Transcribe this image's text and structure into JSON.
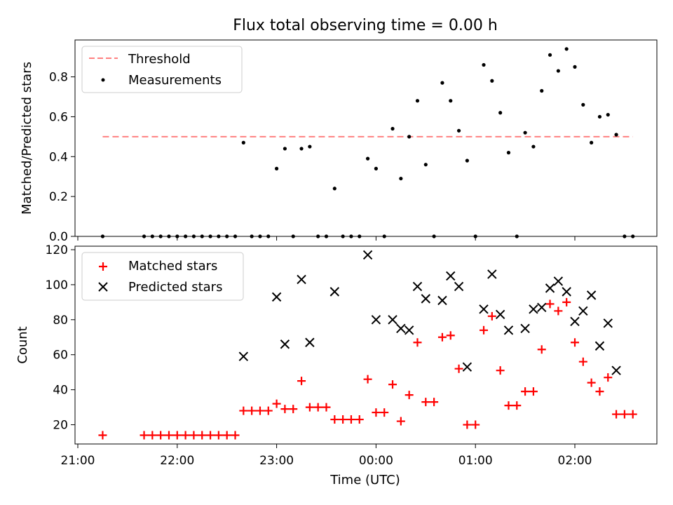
{
  "figure": {
    "title": "Flux total observing time = 0.00 h",
    "xlabel": "Time (UTC)"
  },
  "chart_data": [
    {
      "type": "scatter",
      "ylabel": "Matched/Predicted stars",
      "ylim": [
        0,
        0.985
      ],
      "yticks": [
        "0.0",
        "0.2",
        "0.4",
        "0.6",
        "0.8"
      ],
      "legend_position": "top-left",
      "threshold": {
        "name": "Threshold",
        "value": 0.5,
        "x_range": [
          "21:15",
          "02:35"
        ],
        "color": "#ff8080",
        "style": "dashed"
      },
      "series": [
        {
          "name": "Measurements",
          "color": "#000000",
          "marker": "dot",
          "points": [
            [
              "21:15",
              0.0
            ],
            [
              "21:40",
              0.0
            ],
            [
              "21:45",
              0.0
            ],
            [
              "21:50",
              0.0
            ],
            [
              "21:55",
              0.0
            ],
            [
              "22:00",
              0.0
            ],
            [
              "22:05",
              0.0
            ],
            [
              "22:10",
              0.0
            ],
            [
              "22:15",
              0.0
            ],
            [
              "22:20",
              0.0
            ],
            [
              "22:25",
              0.0
            ],
            [
              "22:30",
              0.0
            ],
            [
              "22:35",
              0.0
            ],
            [
              "22:40",
              0.47
            ],
            [
              "22:45",
              0.0
            ],
            [
              "22:50",
              0.0
            ],
            [
              "22:55",
              0.0
            ],
            [
              "23:00",
              0.34
            ],
            [
              "23:05",
              0.44
            ],
            [
              "23:10",
              0.0
            ],
            [
              "23:15",
              0.44
            ],
            [
              "23:20",
              0.45
            ],
            [
              "23:25",
              0.0
            ],
            [
              "23:30",
              0.0
            ],
            [
              "23:35",
              0.24
            ],
            [
              "23:40",
              0.0
            ],
            [
              "23:45",
              0.0
            ],
            [
              "23:50",
              0.0
            ],
            [
              "23:55",
              0.39
            ],
            [
              "00:00",
              0.34
            ],
            [
              "00:05",
              0.0
            ],
            [
              "00:10",
              0.54
            ],
            [
              "00:15",
              0.29
            ],
            [
              "00:20",
              0.5
            ],
            [
              "00:25",
              0.68
            ],
            [
              "00:30",
              0.36
            ],
            [
              "00:35",
              0.0
            ],
            [
              "00:40",
              0.77
            ],
            [
              "00:45",
              0.68
            ],
            [
              "00:50",
              0.53
            ],
            [
              "00:55",
              0.38
            ],
            [
              "01:00",
              0.0
            ],
            [
              "01:05",
              0.86
            ],
            [
              "01:10",
              0.78
            ],
            [
              "01:15",
              0.62
            ],
            [
              "01:20",
              0.42
            ],
            [
              "01:25",
              0.0
            ],
            [
              "01:30",
              0.52
            ],
            [
              "01:35",
              0.45
            ],
            [
              "01:40",
              0.73
            ],
            [
              "01:45",
              0.91
            ],
            [
              "01:50",
              0.83
            ],
            [
              "01:55",
              0.94
            ],
            [
              "02:00",
              0.85
            ],
            [
              "02:05",
              0.66
            ],
            [
              "02:10",
              0.47
            ],
            [
              "02:15",
              0.6
            ],
            [
              "02:20",
              0.61
            ],
            [
              "02:25",
              0.51
            ],
            [
              "02:30",
              0.0
            ],
            [
              "02:35",
              0.0
            ]
          ]
        }
      ]
    },
    {
      "type": "scatter",
      "ylabel": "Count",
      "ylim": [
        9,
        122
      ],
      "yticks": [
        "20",
        "40",
        "60",
        "80",
        "100",
        "120"
      ],
      "xticks": [
        "21:00",
        "22:00",
        "23:00",
        "00:00",
        "01:00",
        "02:00"
      ],
      "legend_position": "top-left",
      "series": [
        {
          "name": "Matched stars",
          "color": "#ff0000",
          "marker": "plus",
          "points": [
            [
              "21:15",
              14
            ],
            [
              "21:40",
              14
            ],
            [
              "21:45",
              14
            ],
            [
              "21:50",
              14
            ],
            [
              "21:55",
              14
            ],
            [
              "22:00",
              14
            ],
            [
              "22:05",
              14
            ],
            [
              "22:10",
              14
            ],
            [
              "22:15",
              14
            ],
            [
              "22:20",
              14
            ],
            [
              "22:25",
              14
            ],
            [
              "22:30",
              14
            ],
            [
              "22:35",
              14
            ],
            [
              "22:40",
              28
            ],
            [
              "22:45",
              28
            ],
            [
              "22:50",
              28
            ],
            [
              "22:55",
              28
            ],
            [
              "23:00",
              32
            ],
            [
              "23:05",
              29
            ],
            [
              "23:10",
              29
            ],
            [
              "23:15",
              45
            ],
            [
              "23:20",
              30
            ],
            [
              "23:25",
              30
            ],
            [
              "23:30",
              30
            ],
            [
              "23:35",
              23
            ],
            [
              "23:40",
              23
            ],
            [
              "23:45",
              23
            ],
            [
              "23:50",
              23
            ],
            [
              "23:55",
              46
            ],
            [
              "00:00",
              27
            ],
            [
              "00:05",
              27
            ],
            [
              "00:10",
              43
            ],
            [
              "00:15",
              22
            ],
            [
              "00:20",
              37
            ],
            [
              "00:25",
              67
            ],
            [
              "00:30",
              33
            ],
            [
              "00:35",
              33
            ],
            [
              "00:40",
              70
            ],
            [
              "00:45",
              71
            ],
            [
              "00:50",
              52
            ],
            [
              "00:55",
              20
            ],
            [
              "01:00",
              20
            ],
            [
              "01:05",
              74
            ],
            [
              "01:10",
              82
            ],
            [
              "01:15",
              51
            ],
            [
              "01:20",
              31
            ],
            [
              "01:25",
              31
            ],
            [
              "01:30",
              39
            ],
            [
              "01:35",
              39
            ],
            [
              "01:40",
              63
            ],
            [
              "01:45",
              89
            ],
            [
              "01:50",
              85
            ],
            [
              "01:55",
              90
            ],
            [
              "02:00",
              67
            ],
            [
              "02:05",
              56
            ],
            [
              "02:10",
              44
            ],
            [
              "02:15",
              39
            ],
            [
              "02:20",
              47
            ],
            [
              "02:25",
              26
            ],
            [
              "02:30",
              26
            ],
            [
              "02:35",
              26
            ]
          ]
        },
        {
          "name": "Predicted stars",
          "color": "#000000",
          "marker": "x",
          "points": [
            [
              "22:40",
              59
            ],
            [
              "23:00",
              93
            ],
            [
              "23:05",
              66
            ],
            [
              "23:15",
              103
            ],
            [
              "23:20",
              67
            ],
            [
              "23:35",
              96
            ],
            [
              "23:55",
              117
            ],
            [
              "00:00",
              80
            ],
            [
              "00:10",
              80
            ],
            [
              "00:15",
              75
            ],
            [
              "00:20",
              74
            ],
            [
              "00:25",
              99
            ],
            [
              "00:30",
              92
            ],
            [
              "00:40",
              91
            ],
            [
              "00:45",
              105
            ],
            [
              "00:50",
              99
            ],
            [
              "00:55",
              53
            ],
            [
              "01:05",
              86
            ],
            [
              "01:10",
              106
            ],
            [
              "01:15",
              83
            ],
            [
              "01:20",
              74
            ],
            [
              "01:30",
              75
            ],
            [
              "01:35",
              86
            ],
            [
              "01:40",
              87
            ],
            [
              "01:45",
              98
            ],
            [
              "01:50",
              102
            ],
            [
              "01:55",
              96
            ],
            [
              "02:00",
              79
            ],
            [
              "02:05",
              85
            ],
            [
              "02:10",
              94
            ],
            [
              "02:15",
              65
            ],
            [
              "02:20",
              78
            ],
            [
              "02:25",
              51
            ]
          ]
        }
      ]
    }
  ]
}
